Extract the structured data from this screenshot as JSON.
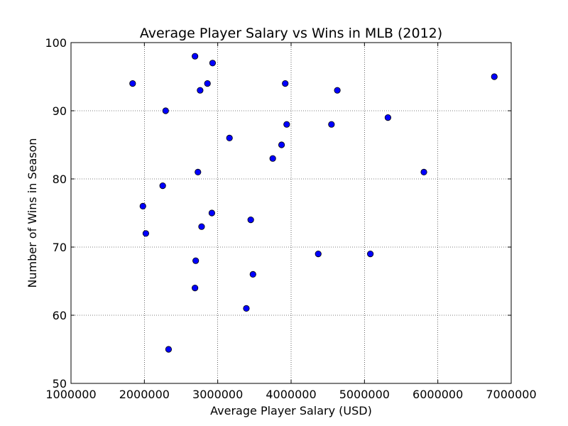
{
  "chart_data": {
    "type": "scatter",
    "title": "Average Player Salary vs Wins in MLB (2012)",
    "xlabel": "Average Player Salary (USD)",
    "ylabel": "Number of Wins in Season",
    "xlim": [
      1000000,
      7000000
    ],
    "ylim": [
      50,
      100
    ],
    "xticks": [
      1000000,
      2000000,
      3000000,
      4000000,
      5000000,
      6000000,
      7000000
    ],
    "yticks": [
      50,
      60,
      70,
      80,
      90,
      100
    ],
    "grid": true,
    "marker_color": "#0000ff",
    "marker_edge_color": "#000000",
    "points": [
      {
        "x": 1840000,
        "y": 94
      },
      {
        "x": 1980000,
        "y": 76
      },
      {
        "x": 2020000,
        "y": 72
      },
      {
        "x": 2250000,
        "y": 79
      },
      {
        "x": 2290000,
        "y": 90
      },
      {
        "x": 2330000,
        "y": 55
      },
      {
        "x": 2690000,
        "y": 98
      },
      {
        "x": 2690000,
        "y": 64
      },
      {
        "x": 2700000,
        "y": 68
      },
      {
        "x": 2730000,
        "y": 81
      },
      {
        "x": 2760000,
        "y": 93
      },
      {
        "x": 2780000,
        "y": 73
      },
      {
        "x": 2860000,
        "y": 94
      },
      {
        "x": 2920000,
        "y": 75
      },
      {
        "x": 2930000,
        "y": 97
      },
      {
        "x": 3160000,
        "y": 86
      },
      {
        "x": 3390000,
        "y": 61
      },
      {
        "x": 3450000,
        "y": 74
      },
      {
        "x": 3480000,
        "y": 66
      },
      {
        "x": 3750000,
        "y": 83
      },
      {
        "x": 3870000,
        "y": 85
      },
      {
        "x": 3920000,
        "y": 94
      },
      {
        "x": 3940000,
        "y": 88
      },
      {
        "x": 4370000,
        "y": 69
      },
      {
        "x": 4550000,
        "y": 88
      },
      {
        "x": 4630000,
        "y": 93
      },
      {
        "x": 5080000,
        "y": 69
      },
      {
        "x": 5320000,
        "y": 89
      },
      {
        "x": 5810000,
        "y": 81
      },
      {
        "x": 6770000,
        "y": 95
      }
    ]
  }
}
